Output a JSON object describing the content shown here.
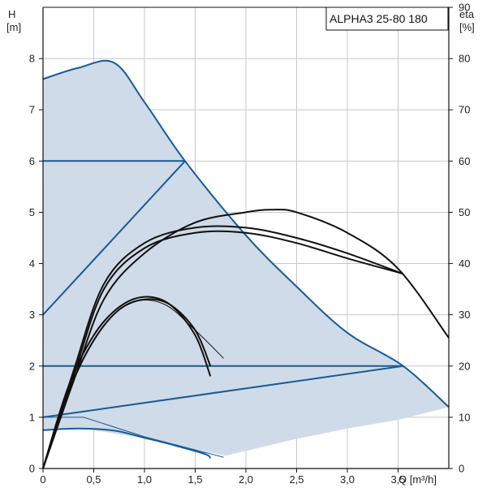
{
  "chart_data": {
    "type": "line",
    "title": "ALPHA3 25-80 180",
    "x_axis": {
      "label": "Q [m³/h]",
      "range": [
        0,
        4.0
      ],
      "ticks": [
        "0",
        "0,5",
        "1,0",
        "1,5",
        "2,0",
        "2,5",
        "3,0",
        "3,5"
      ]
    },
    "y_axis_left": {
      "label_top": "H",
      "label_unit": "[m]",
      "range": [
        0,
        9
      ],
      "ticks": [
        "0",
        "1",
        "2",
        "3",
        "4",
        "5",
        "6",
        "7",
        "8"
      ]
    },
    "y_axis_right": {
      "label_top": "eta",
      "label_unit": "[%]",
      "range": [
        0,
        90
      ],
      "ticks": [
        "0",
        "10",
        "20",
        "30",
        "40",
        "50",
        "60",
        "70",
        "80",
        "90"
      ]
    },
    "grid": true,
    "colors": {
      "area": "#cfdbe8",
      "curve_blue": "#1a5a96",
      "curve_black": "#111111",
      "grid": "#c8c8c8"
    },
    "operating_area": {
      "upper": [
        [
          0,
          7.6
        ],
        [
          0.35,
          7.82
        ],
        [
          0.7,
          7.92
        ],
        [
          1.0,
          7.15
        ],
        [
          1.4,
          6.0
        ],
        [
          2.0,
          4.55
        ],
        [
          2.5,
          3.55
        ],
        [
          3.0,
          2.65
        ],
        [
          3.55,
          2.0
        ],
        [
          4.0,
          1.2
        ]
      ],
      "lower": [
        [
          4.0,
          1.2
        ],
        [
          3.5,
          0.95
        ],
        [
          3.0,
          0.78
        ],
        [
          2.5,
          0.58
        ],
        [
          1.8,
          0.25
        ],
        [
          0.9,
          0.62
        ],
        [
          0.4,
          0.78
        ],
        [
          0,
          0.75
        ]
      ]
    },
    "head_curves": [
      {
        "points": [
          [
            0,
            7.6
          ],
          [
            0.35,
            7.82
          ],
          [
            0.7,
            7.92
          ],
          [
            1.0,
            7.15
          ],
          [
            1.4,
            6.0
          ],
          [
            2.0,
            4.55
          ],
          [
            2.5,
            3.55
          ],
          [
            3.0,
            2.65
          ],
          [
            3.55,
            2.0
          ],
          [
            4.0,
            1.2
          ]
        ]
      },
      {
        "points": [
          [
            0,
            6.0
          ],
          [
            1.4,
            6.0
          ]
        ]
      },
      {
        "points": [
          [
            0,
            3.0
          ],
          [
            1.4,
            6.0
          ]
        ]
      },
      {
        "points": [
          [
            0,
            2.0
          ],
          [
            3.55,
            2.0
          ]
        ]
      },
      {
        "points": [
          [
            0,
            1.0
          ],
          [
            3.55,
            2.0
          ]
        ]
      },
      {
        "points": [
          [
            0,
            0.75
          ],
          [
            0.35,
            0.78
          ],
          [
            0.7,
            0.74
          ],
          [
            1.0,
            0.6
          ],
          [
            1.3,
            0.45
          ],
          [
            1.6,
            0.28
          ],
          [
            1.65,
            0.2
          ]
        ]
      }
    ],
    "thin_curves": [
      {
        "color": "#1a5a96",
        "points": [
          [
            0,
            1.0
          ],
          [
            0.4,
            1.0
          ],
          [
            1.0,
            0.62
          ],
          [
            1.78,
            0.22
          ]
        ]
      }
    ],
    "efficiency_curves": [
      {
        "points": [
          [
            0,
            0
          ],
          [
            0.3,
            18
          ],
          [
            0.6,
            35
          ],
          [
            1.0,
            43
          ],
          [
            1.5,
            46
          ],
          [
            2.0,
            46
          ],
          [
            2.5,
            44
          ],
          [
            3.0,
            41
          ],
          [
            3.55,
            38
          ]
        ]
      },
      {
        "points": [
          [
            0,
            0
          ],
          [
            0.3,
            19
          ],
          [
            0.6,
            36
          ],
          [
            1.0,
            44
          ],
          [
            1.5,
            47
          ],
          [
            2.0,
            47
          ],
          [
            2.5,
            45
          ],
          [
            3.0,
            42
          ],
          [
            3.55,
            38
          ]
        ]
      },
      {
        "points": [
          [
            0,
            0
          ],
          [
            0.3,
            17
          ],
          [
            0.6,
            33
          ],
          [
            1.0,
            42
          ],
          [
            1.5,
            48
          ],
          [
            2.0,
            50
          ],
          [
            2.25,
            50.5
          ],
          [
            2.5,
            50
          ],
          [
            3.0,
            46
          ],
          [
            3.5,
            39
          ],
          [
            4.0,
            25.5
          ]
        ]
      },
      {
        "points": [
          [
            0,
            0
          ],
          [
            0.25,
            16
          ],
          [
            0.5,
            26
          ],
          [
            0.75,
            31.5
          ],
          [
            1.0,
            33.5
          ],
          [
            1.25,
            32
          ],
          [
            1.5,
            26
          ],
          [
            1.65,
            18
          ]
        ]
      },
      {
        "points": [
          [
            0,
            0
          ],
          [
            0.25,
            15
          ],
          [
            0.5,
            25
          ],
          [
            0.75,
            31
          ],
          [
            1.0,
            33
          ],
          [
            1.25,
            32
          ],
          [
            1.5,
            27
          ],
          [
            1.65,
            20
          ]
        ]
      }
    ],
    "thin_efficiency_curves": [
      {
        "color": "#111111",
        "points": [
          [
            0,
            0
          ],
          [
            0.3,
            17
          ],
          [
            0.6,
            28
          ],
          [
            0.9,
            32.5
          ],
          [
            1.2,
            32
          ],
          [
            1.5,
            27
          ],
          [
            1.78,
            21.5
          ]
        ]
      }
    ]
  }
}
